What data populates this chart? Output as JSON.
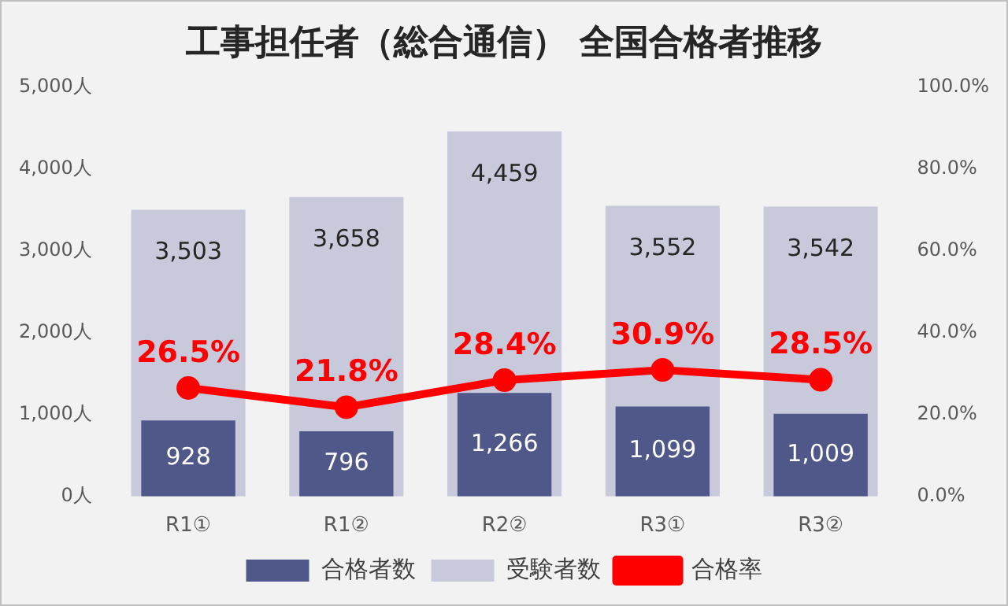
{
  "chart_data": {
    "type": "bar",
    "title": "工事担任者（総合通信） 全国合格者推移",
    "categories": [
      "R1①",
      "R1②",
      "R2②",
      "R3①",
      "R3②"
    ],
    "series": [
      {
        "name": "合格者数",
        "color": "#4f5889",
        "values": [
          928,
          796,
          1266,
          1099,
          1009
        ],
        "value_labels": [
          "928",
          "796",
          "1,266",
          "1,099",
          "1,009"
        ]
      },
      {
        "name": "受験者数",
        "color": "#c9c9dc",
        "values": [
          3503,
          3658,
          4459,
          3552,
          3542
        ],
        "value_labels": [
          "3,503",
          "3,658",
          "4,459",
          "3,552",
          "3,542"
        ]
      },
      {
        "name": "合格率",
        "type": "line",
        "axis": "y2",
        "color": "#ff0000",
        "marker": "circle",
        "values": [
          26.5,
          21.8,
          28.4,
          30.9,
          28.5
        ],
        "value_labels": [
          "26.5%",
          "21.8%",
          "28.4%",
          "30.9%",
          "28.5%"
        ]
      }
    ],
    "ylim": [
      0,
      5000
    ],
    "yticks": [
      {
        "value": 0,
        "label": "0人"
      },
      {
        "value": 1000,
        "label": "1,000人"
      },
      {
        "value": 2000,
        "label": "2,000人"
      },
      {
        "value": 3000,
        "label": "3,000人"
      },
      {
        "value": 4000,
        "label": "4,000人"
      },
      {
        "value": 5000,
        "label": "5,000人"
      }
    ],
    "y2lim": [
      0,
      100
    ],
    "y2ticks": [
      {
        "value": 0,
        "label": "0.0%"
      },
      {
        "value": 20,
        "label": "20.0%"
      },
      {
        "value": 40,
        "label": "40.0%"
      },
      {
        "value": 60,
        "label": "60.0%"
      },
      {
        "value": 80,
        "label": "80.0%"
      },
      {
        "value": 100,
        "label": "100.0%"
      }
    ],
    "legend": "bottom",
    "grid": false
  }
}
